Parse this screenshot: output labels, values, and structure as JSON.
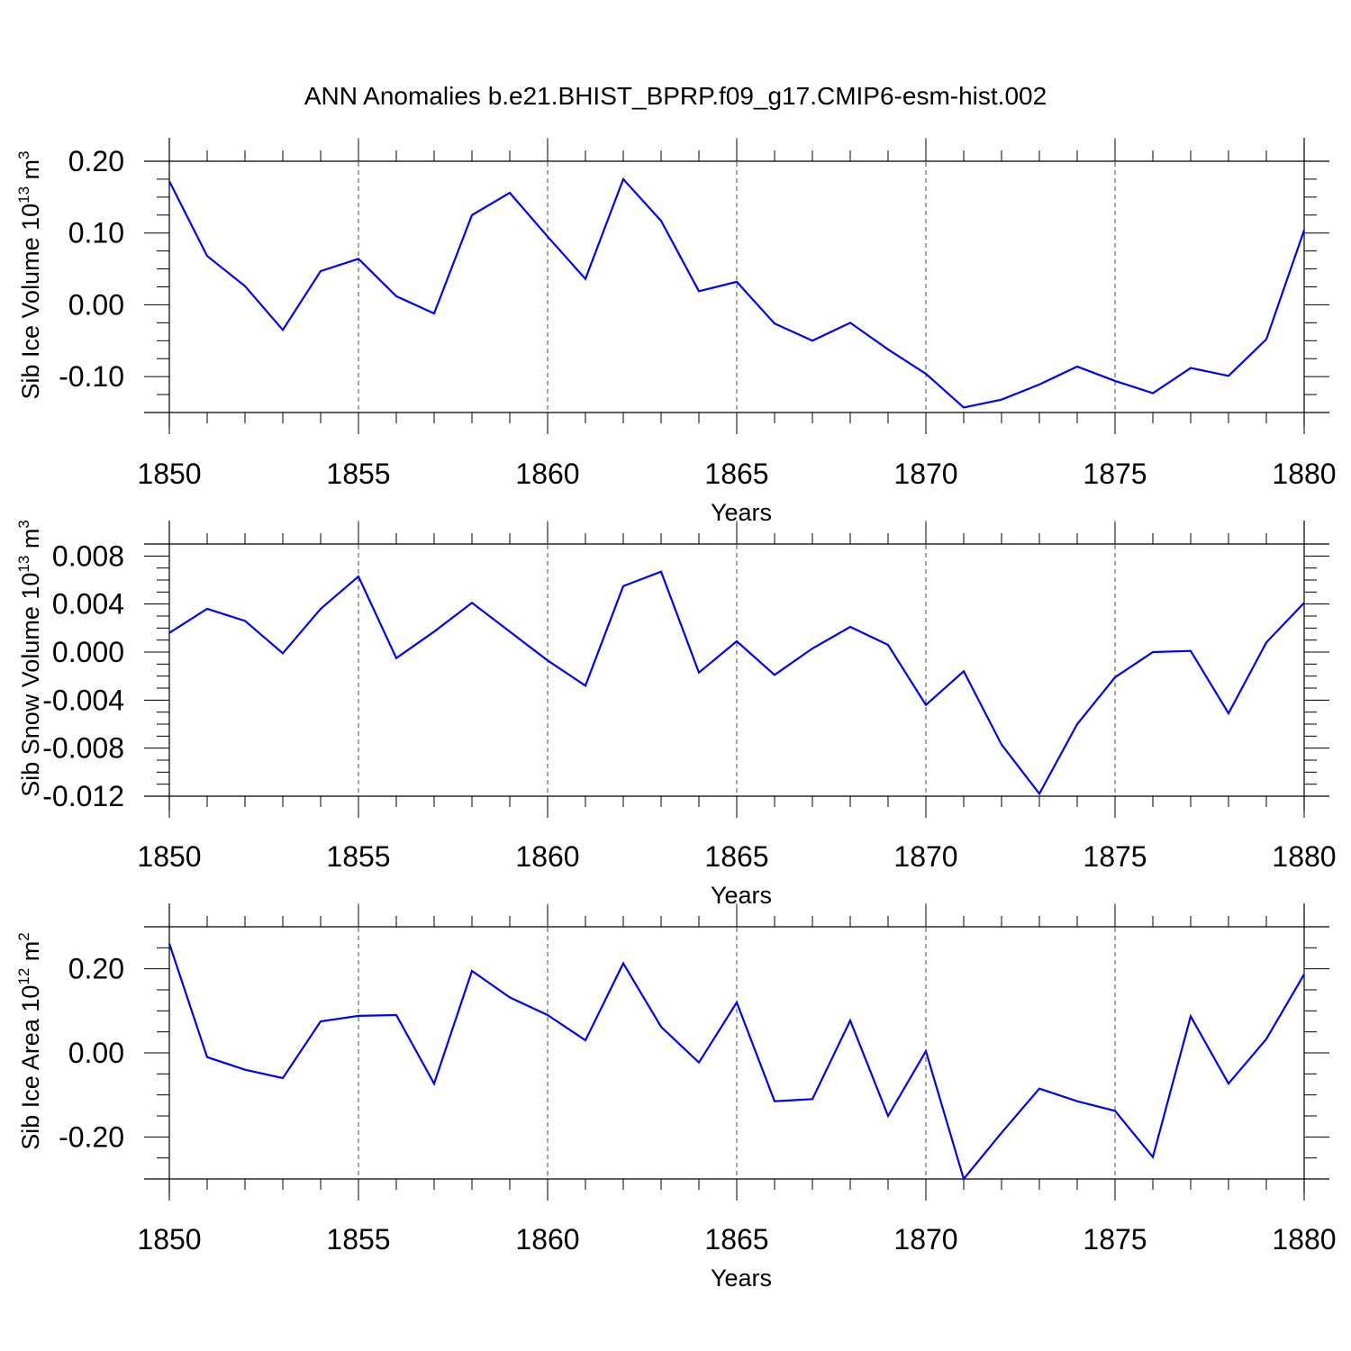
{
  "title": "ANN Anomalies b.e21.BHIST_BPRP.f09_g17.CMIP6-esm-hist.002",
  "colors": {
    "line": "#0000ff",
    "axes": "#000000",
    "background": "#ffffff"
  },
  "chart_data": [
    {
      "type": "line",
      "xlabel": "Years",
      "ylabel": "Sib Ice Volume",
      "ylabel_unit_base": "10",
      "ylabel_unit_exp": "13",
      "ylabel_unit": "m",
      "ylabel_unit_unit_exp": "3",
      "xlim": [
        1850,
        1880
      ],
      "ylim": [
        -0.15,
        0.2
      ],
      "xticks": [
        "1850",
        "1855",
        "1860",
        "1865",
        "1870",
        "1875",
        "1880"
      ],
      "yticks": [
        0.2,
        0.1,
        0.0,
        -0.1
      ],
      "ytick_labels": [
        "0.20",
        "0.10",
        "0.00",
        "-0.10"
      ],
      "grid": "vertical dashed at major x ticks",
      "x": [
        1850,
        1851,
        1852,
        1853,
        1854,
        1855,
        1856,
        1857,
        1858,
        1859,
        1860,
        1861,
        1862,
        1863,
        1864,
        1865,
        1866,
        1867,
        1868,
        1869,
        1870,
        1871,
        1872,
        1873,
        1874,
        1875,
        1876,
        1877,
        1878,
        1879,
        1880
      ],
      "series": [
        {
          "values": [
            0.172,
            0.068,
            0.026,
            -0.035,
            0.047,
            0.064,
            0.012,
            -0.012,
            0.125,
            0.156,
            0.095,
            0.036,
            0.175,
            0.117,
            0.019,
            0.032,
            -0.026,
            -0.05,
            -0.025,
            -0.062,
            -0.096,
            -0.143,
            -0.132,
            -0.111,
            -0.086,
            -0.106,
            -0.123,
            -0.088,
            -0.099,
            -0.048,
            0.104
          ]
        }
      ]
    },
    {
      "type": "line",
      "xlabel": "Years",
      "ylabel": "Sib Snow Volume",
      "ylabel_unit_base": "10",
      "ylabel_unit_exp": "13",
      "ylabel_unit": "m",
      "ylabel_unit_unit_exp": "3",
      "xlim": [
        1850,
        1880
      ],
      "ylim": [
        -0.012,
        0.009
      ],
      "xticks": [
        "1850",
        "1855",
        "1860",
        "1865",
        "1870",
        "1875",
        "1880"
      ],
      "yticks": [
        0.008,
        0.004,
        0.0,
        -0.004,
        -0.008,
        -0.012
      ],
      "ytick_labels": [
        "0.008",
        "0.004",
        "0.000",
        "-0.004",
        "-0.008",
        "-0.012"
      ],
      "grid": "vertical dashed at major x ticks",
      "x": [
        1850,
        1851,
        1852,
        1853,
        1854,
        1855,
        1856,
        1857,
        1858,
        1859,
        1860,
        1861,
        1862,
        1863,
        1864,
        1865,
        1866,
        1867,
        1868,
        1869,
        1870,
        1871,
        1872,
        1873,
        1874,
        1875,
        1876,
        1877,
        1878,
        1879,
        1880
      ],
      "series": [
        {
          "values": [
            0.0016,
            0.0036,
            0.0026,
            -0.0001,
            0.0036,
            0.0063,
            -0.0005,
            0.0017,
            0.0041,
            0.0017,
            -0.0007,
            -0.0028,
            0.0055,
            0.0067,
            -0.0017,
            0.0009,
            -0.0019,
            0.0003,
            0.0021,
            0.0006,
            -0.0044,
            -0.0016,
            -0.0077,
            -0.0118,
            -0.006,
            -0.0021,
            0.0,
            0.0001,
            -0.0051,
            0.0008,
            0.0041
          ]
        }
      ]
    },
    {
      "type": "line",
      "xlabel": "Years",
      "ylabel": "Sib Ice Area",
      "ylabel_unit_base": "10",
      "ylabel_unit_exp": "12",
      "ylabel_unit": "m",
      "ylabel_unit_unit_exp": "2",
      "xlim": [
        1850,
        1880
      ],
      "ylim": [
        -0.3,
        0.3
      ],
      "xticks": [
        "1850",
        "1855",
        "1860",
        "1865",
        "1870",
        "1875",
        "1880"
      ],
      "yticks": [
        0.2,
        0.0,
        -0.2
      ],
      "ytick_labels": [
        "0.20",
        "0.00",
        "-0.20"
      ],
      "grid": "vertical dashed at major x ticks",
      "x": [
        1850,
        1851,
        1852,
        1853,
        1854,
        1855,
        1856,
        1857,
        1858,
        1859,
        1860,
        1861,
        1862,
        1863,
        1864,
        1865,
        1866,
        1867,
        1868,
        1869,
        1870,
        1871,
        1872,
        1873,
        1874,
        1875,
        1876,
        1877,
        1878,
        1879,
        1880
      ],
      "series": [
        {
          "values": [
            0.26,
            -0.01,
            -0.04,
            -0.06,
            0.075,
            0.088,
            0.09,
            -0.073,
            0.195,
            0.132,
            0.09,
            0.03,
            0.213,
            0.062,
            -0.023,
            0.12,
            -0.115,
            -0.11,
            0.077,
            -0.15,
            0.004,
            -0.3,
            -0.19,
            -0.085,
            -0.115,
            -0.138,
            -0.248,
            0.087,
            -0.073,
            0.033,
            0.187
          ]
        }
      ]
    }
  ]
}
